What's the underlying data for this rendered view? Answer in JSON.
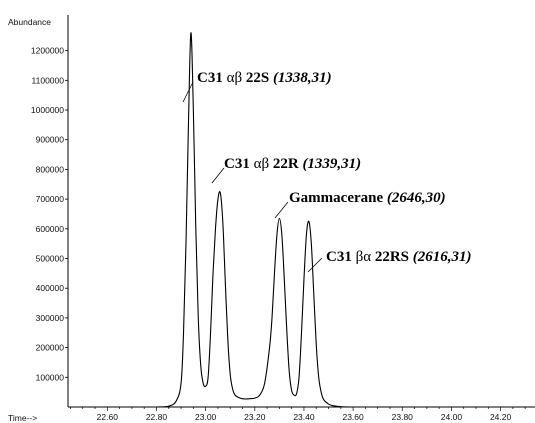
{
  "chart_data": {
    "type": "line",
    "ylabel": "Abundance",
    "xlabel": "Time-->",
    "xlim": [
      22.44,
      24.34
    ],
    "ylim": [
      0,
      1320000
    ],
    "x_ticks": [
      22.6,
      22.8,
      23.0,
      23.2,
      23.4,
      23.6,
      23.8,
      24.0,
      24.2
    ],
    "x_tick_labels": [
      "22.60",
      "22.80",
      "23.00",
      "23.20",
      "23.40",
      "23.60",
      "23.80",
      "24.00",
      "24.20"
    ],
    "y_ticks": [
      100000,
      200000,
      300000,
      400000,
      500000,
      600000,
      700000,
      800000,
      900000,
      1000000,
      1100000,
      1200000
    ],
    "y_tick_labels": [
      "100000",
      "200000",
      "300000",
      "400000",
      "500000",
      "600000",
      "700000",
      "800000",
      "900000",
      "1000000",
      "1100000",
      "1200000"
    ],
    "grid": false,
    "series": [
      {
        "x": [
          22.44,
          22.7,
          22.8,
          22.85,
          22.88,
          22.9,
          22.91,
          22.92,
          22.93,
          22.94,
          22.95,
          22.96,
          22.97,
          22.98,
          22.99,
          23.0,
          23.01,
          23.02,
          23.03,
          23.04,
          23.05,
          23.06,
          23.07,
          23.08,
          23.09,
          23.1,
          23.11,
          23.12,
          23.14,
          23.16,
          23.18,
          23.2,
          23.22,
          23.24,
          23.26,
          23.27,
          23.28,
          23.29,
          23.3,
          23.31,
          23.32,
          23.33,
          23.34,
          23.35,
          23.36,
          23.37,
          23.38,
          23.39,
          23.4,
          23.41,
          23.42,
          23.43,
          23.44,
          23.45,
          23.46,
          23.47,
          23.48,
          23.5,
          23.52,
          23.55,
          23.6,
          23.8,
          24.0,
          24.2,
          24.34
        ],
        "y": [
          0,
          0,
          0,
          3000,
          20000,
          80000,
          250000,
          550000,
          950000,
          1260000,
          1000000,
          600000,
          300000,
          140000,
          80000,
          70000,
          100000,
          250000,
          450000,
          600000,
          700000,
          720000,
          620000,
          420000,
          230000,
          110000,
          60000,
          40000,
          30000,
          27000,
          28000,
          30000,
          40000,
          80000,
          200000,
          300000,
          450000,
          580000,
          635000,
          580000,
          430000,
          260000,
          120000,
          55000,
          40000,
          45000,
          100000,
          250000,
          430000,
          580000,
          625000,
          550000,
          380000,
          210000,
          100000,
          50000,
          25000,
          10000,
          4000,
          1000,
          0,
          0,
          0,
          0,
          0
        ]
      }
    ],
    "annotations": [
      {
        "prefix": "C31 ",
        "greek": "αβ",
        "suffix": " 22S ",
        "italic": "(1338,31)"
      },
      {
        "prefix": "C31 ",
        "greek": "αβ",
        "suffix": " 22R ",
        "italic": "(1339,31)"
      },
      {
        "prefix": "Gammacerane ",
        "greek": "",
        "suffix": "",
        "italic": "(2646,30)"
      },
      {
        "prefix": "C31 ",
        "greek": "βα",
        "suffix": " 22RS ",
        "italic": "(2616,31)"
      }
    ]
  }
}
